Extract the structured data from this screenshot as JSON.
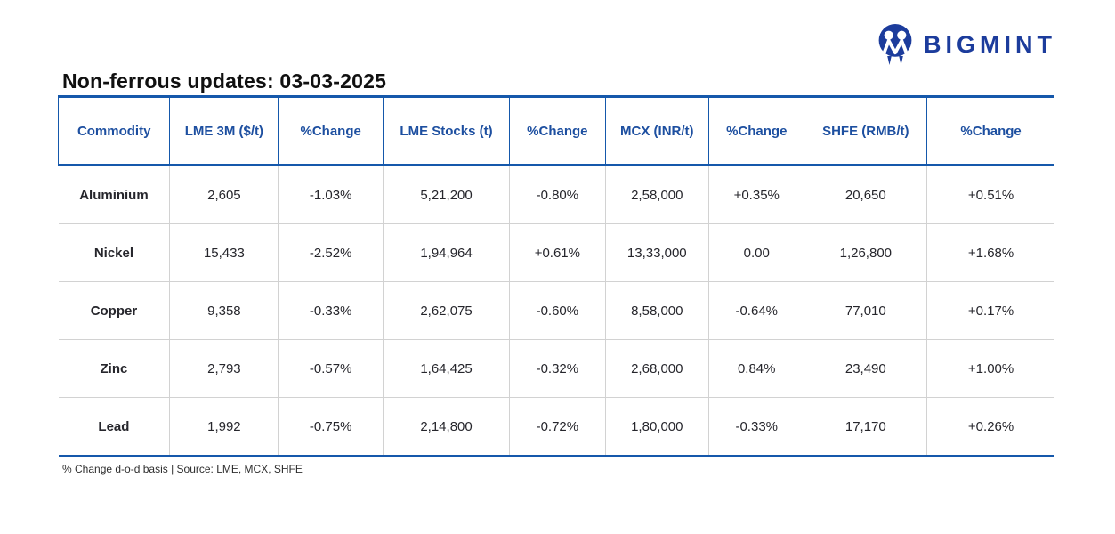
{
  "brand": {
    "logo_text": "BIGMINT"
  },
  "icons": {
    "logo": "bigmint-monogram-icon"
  },
  "title": "Non-ferrous updates: 03-03-2025",
  "footer_note": "% Change d-o-d basis | Source: LME, MCX, SHFE",
  "colors": {
    "brand": "#1c3c9c",
    "table_border_blue": "#1558ab",
    "header_text": "#1d4fa0",
    "positive": "#27b46e",
    "negative": "#f94343",
    "grid_line": "#d2d2d2",
    "body_text": "#26262c"
  },
  "chart_data": {
    "type": "table",
    "title": "Non-ferrous updates: 03-03-2025",
    "columns": [
      "Commodity",
      "LME 3M ($/t)",
      "%Change",
      "LME Stocks (t)",
      "%Change",
      "MCX (INR/t)",
      "%Change",
      "SHFE (RMB/t)",
      "%Change"
    ],
    "rows": [
      {
        "cells": [
          {
            "text": "Aluminium",
            "style": "neutral"
          },
          {
            "text": "2,605",
            "style": "neutral"
          },
          {
            "text": "-1.03%",
            "style": "negative"
          },
          {
            "text": "5,21,200",
            "style": "neutral"
          },
          {
            "text": "-0.80%",
            "style": "negative"
          },
          {
            "text": "2,58,000",
            "style": "neutral"
          },
          {
            "text": "+0.35%",
            "style": "positive"
          },
          {
            "text": "20,650",
            "style": "neutral"
          },
          {
            "text": "+0.51%",
            "style": "positive"
          }
        ]
      },
      {
        "cells": [
          {
            "text": "Nickel",
            "style": "neutral"
          },
          {
            "text": "15,433",
            "style": "neutral"
          },
          {
            "text": "-2.52%",
            "style": "negative"
          },
          {
            "text": "1,94,964",
            "style": "neutral"
          },
          {
            "text": "+0.61%",
            "style": "positive"
          },
          {
            "text": "13,33,000",
            "style": "neutral"
          },
          {
            "text": "0.00",
            "style": "neutral"
          },
          {
            "text": "1,26,800",
            "style": "neutral"
          },
          {
            "text": "+1.68%",
            "style": "positive"
          }
        ]
      },
      {
        "cells": [
          {
            "text": "Copper",
            "style": "neutral"
          },
          {
            "text": "9,358",
            "style": "neutral"
          },
          {
            "text": "-0.33%",
            "style": "negative"
          },
          {
            "text": "2,62,075",
            "style": "neutral"
          },
          {
            "text": "-0.60%",
            "style": "negative"
          },
          {
            "text": "8,58,000",
            "style": "neutral"
          },
          {
            "text": "-0.64%",
            "style": "negative"
          },
          {
            "text": "77,010",
            "style": "neutral"
          },
          {
            "text": "+0.17%",
            "style": "positive"
          }
        ]
      },
      {
        "cells": [
          {
            "text": "Zinc",
            "style": "neutral"
          },
          {
            "text": "2,793",
            "style": "neutral"
          },
          {
            "text": "-0.57%",
            "style": "negative"
          },
          {
            "text": "1,64,425",
            "style": "neutral"
          },
          {
            "text": "-0.32%",
            "style": "negative"
          },
          {
            "text": "2,68,000",
            "style": "neutral"
          },
          {
            "text": "0.84%",
            "style": "positive"
          },
          {
            "text": "23,490",
            "style": "neutral"
          },
          {
            "text": "+1.00%",
            "style": "positive"
          }
        ]
      },
      {
        "cells": [
          {
            "text": "Lead",
            "style": "neutral"
          },
          {
            "text": "1,992",
            "style": "neutral"
          },
          {
            "text": "-0.75%",
            "style": "negative"
          },
          {
            "text": "2,14,800",
            "style": "neutral"
          },
          {
            "text": "-0.72%",
            "style": "negative"
          },
          {
            "text": "1,80,000",
            "style": "neutral"
          },
          {
            "text": "-0.33%",
            "style": "negative"
          },
          {
            "text": "17,170",
            "style": "neutral"
          },
          {
            "text": "+0.26%",
            "style": "positive"
          }
        ]
      }
    ],
    "footnote": "% Change d-o-d basis | Source: LME, MCX, SHFE",
    "layout": {
      "grid": "on",
      "header_position": "top",
      "value_alignment": "center"
    }
  }
}
